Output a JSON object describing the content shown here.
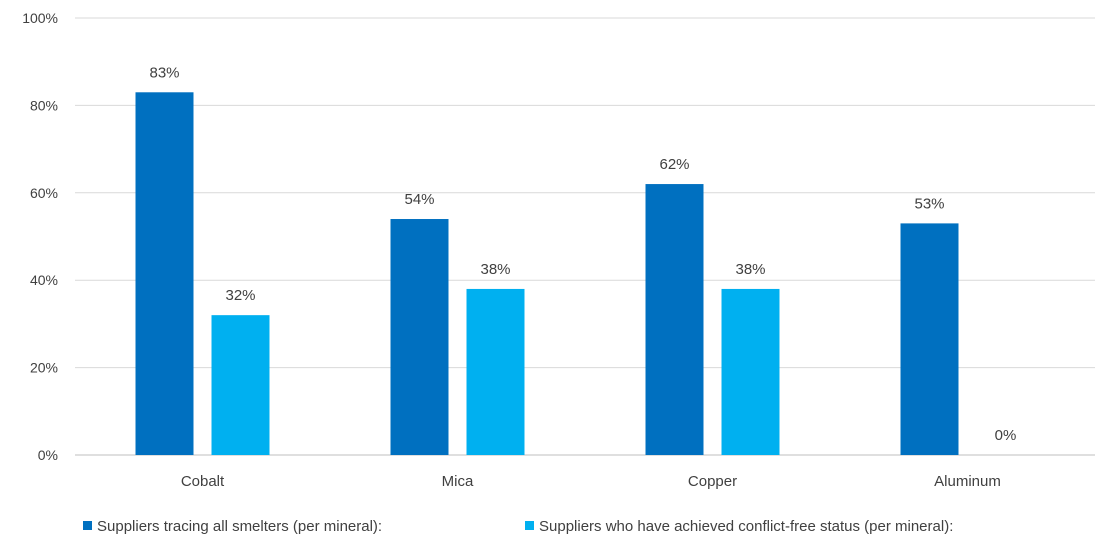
{
  "chart_data": {
    "type": "bar",
    "categories": [
      "Cobalt",
      "Mica",
      "Copper",
      "Aluminum"
    ],
    "series": [
      {
        "name": "Suppliers tracing all smelters (per mineral):",
        "values": [
          83,
          54,
          62,
          53
        ],
        "labels": [
          "83%",
          "54%",
          "62%",
          "53%"
        ],
        "color": "#0070c0"
      },
      {
        "name": "Suppliers who have achieved conflict-free status (per mineral):",
        "values": [
          32,
          38,
          38,
          0
        ],
        "labels": [
          "32%",
          "38%",
          "38%",
          "0%"
        ],
        "color": "#00b0f0"
      }
    ],
    "ylim": [
      0,
      100
    ],
    "yticks": [
      0,
      20,
      40,
      60,
      80,
      100
    ],
    "ytick_labels": [
      "0%",
      "20%",
      "40%",
      "60%",
      "80%",
      "100%"
    ],
    "grid": true,
    "legend_position": "bottom",
    "title": "",
    "xlabel": "",
    "ylabel": ""
  }
}
